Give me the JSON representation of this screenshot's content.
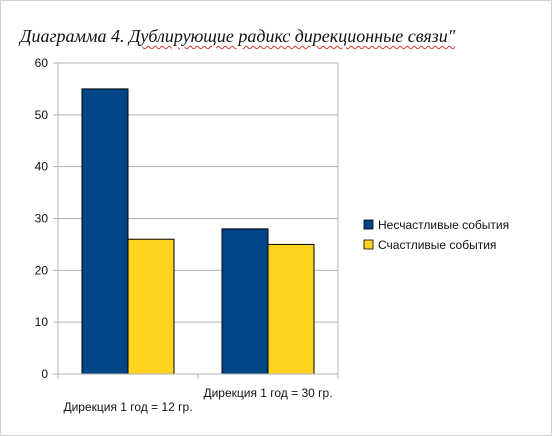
{
  "chart_data": {
    "type": "bar",
    "title_prefix": "Диаграмма 4. ",
    "title_main": "Дублирующие радикс дирекционные связи\"",
    "categories": [
      "Дирекция 1 год = 12 гр.",
      "Дирекция 1 год = 30 гр."
    ],
    "series": [
      {
        "name": "Несчастливые события",
        "values": [
          55,
          28
        ],
        "color": "#004586"
      },
      {
        "name": "Счастливые события",
        "values": [
          26,
          25
        ],
        "color": "#ffd320"
      }
    ],
    "ylim": [
      0,
      60
    ],
    "yticks": [
      0,
      10,
      20,
      30,
      40,
      50,
      60
    ],
    "grid": true,
    "legend_position": "right"
  }
}
